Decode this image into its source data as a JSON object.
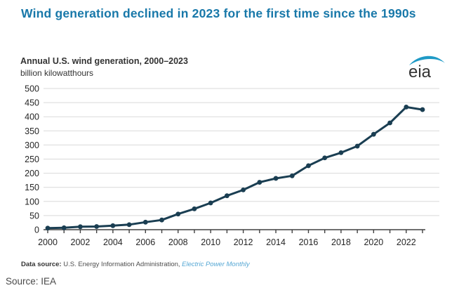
{
  "headline": "Wind generation declined in 2023 for the first time since the 1990s",
  "logo": {
    "text": "eia"
  },
  "datasource": {
    "label": "Data source:",
    "text": " U.S. Energy Information Administration, ",
    "link": "Electric Power Monthly"
  },
  "footer": {
    "source": "Source: IEA"
  },
  "colors": {
    "headline": "#1878a9",
    "line": "#1a3e52",
    "grid": "#d9d9d9",
    "axis": "#404040",
    "tick_text": "#262626",
    "logo_swoosh": "#1f9ac6",
    "logo_text": "#333333"
  },
  "chart_data": {
    "type": "line",
    "title": "Annual U.S. wind generation, 2000–2023",
    "ylabel": "billion kilowatthours",
    "xlabel": "",
    "x": [
      2000,
      2001,
      2002,
      2003,
      2004,
      2005,
      2006,
      2007,
      2008,
      2009,
      2010,
      2011,
      2012,
      2013,
      2014,
      2015,
      2016,
      2017,
      2018,
      2019,
      2020,
      2021,
      2022,
      2023
    ],
    "series": [
      {
        "name": "Annual U.S. wind generation",
        "values": [
          5.6,
          6.7,
          10.4,
          11.2,
          14.1,
          17.8,
          26.6,
          34.4,
          55.4,
          73.9,
          94.7,
          120.2,
          140.8,
          167.8,
          181.7,
          190.7,
          226.5,
          254.3,
          272.7,
          295.9,
          337.9,
          378.2,
          434.3,
          425.2
        ]
      }
    ],
    "ylim": [
      0,
      500
    ],
    "ytick_step": 50,
    "x_labeled_years": [
      2000,
      2002,
      2004,
      2006,
      2008,
      2010,
      2012,
      2014,
      2016,
      2018,
      2020,
      2022
    ],
    "grid": true,
    "legend": "none",
    "marker": "circle"
  }
}
